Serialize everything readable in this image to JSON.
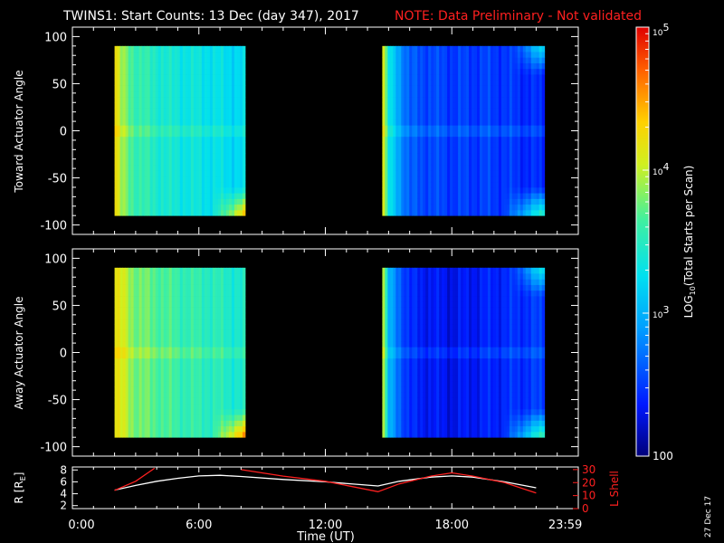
{
  "header": {
    "title": "TWINS1: Start Counts: 13 Dec (day 347), 2017",
    "note": "NOTE: Data Preliminary - Not validated"
  },
  "stamp": "27 Dec 17",
  "colors": {
    "note": "#ff2020",
    "lshell": "#ff2020",
    "r_line": "#ffffff",
    "background": "#000000"
  },
  "chart_data": [
    {
      "type": "heatmap",
      "panel": "toward",
      "ylabel": "Toward Actuator Angle",
      "ylim": [
        -110,
        110
      ],
      "yticks": [
        100,
        50,
        0,
        -50,
        -100
      ],
      "ytick_labels": [
        "100",
        "50",
        "0",
        "-50",
        "-100"
      ],
      "xlim": [
        0,
        24
      ],
      "data_blocks_hours": [
        [
          2.0,
          8.2
        ],
        [
          14.7,
          22.4
        ]
      ],
      "angle_range": [
        -90,
        90
      ],
      "level_profile": {
        "block1": [
          [
            2.0,
            4.3
          ],
          [
            2.3,
            3.9
          ],
          [
            3.0,
            3.6
          ],
          [
            4.5,
            3.4
          ],
          [
            6.5,
            3.3
          ],
          [
            8.2,
            3.2
          ]
        ],
        "block2": [
          [
            14.7,
            4.3
          ],
          [
            15.0,
            3.3
          ],
          [
            16.0,
            2.6
          ],
          [
            18.0,
            2.5
          ],
          [
            20.0,
            2.5
          ],
          [
            22.4,
            2.4
          ]
        ]
      }
    },
    {
      "type": "heatmap",
      "panel": "away",
      "ylabel": "Away Actuator Angle",
      "ylim": [
        -110,
        110
      ],
      "yticks": [
        100,
        50,
        0,
        -50,
        -100
      ],
      "ytick_labels": [
        "100",
        "50",
        "0",
        "-50",
        "-100"
      ],
      "xlim": [
        0,
        24
      ],
      "data_blocks_hours": [
        [
          2.0,
          8.2
        ],
        [
          14.7,
          22.4
        ]
      ],
      "angle_range": [
        -90,
        90
      ],
      "level_profile": {
        "block1": [
          [
            2.0,
            4.2
          ],
          [
            2.5,
            4.0
          ],
          [
            3.0,
            3.8
          ],
          [
            5.0,
            3.6
          ],
          [
            7.0,
            3.5
          ],
          [
            8.2,
            3.4
          ]
        ],
        "block2": [
          [
            14.7,
            4.2
          ],
          [
            15.0,
            3.0
          ],
          [
            16.0,
            2.4
          ],
          [
            18.0,
            2.3
          ],
          [
            20.0,
            2.4
          ],
          [
            22.4,
            2.5
          ]
        ]
      }
    },
    {
      "type": "line",
      "panel": "orbit",
      "ylabel_left": "R [R",
      "ylabel_left_sub": "E",
      "ylabel_left_close": "]",
      "ylabel_right": "L Shell",
      "ylim_left": [
        1.5,
        8.5
      ],
      "yticks_left": [
        8,
        6,
        4,
        2
      ],
      "ylim_right": [
        0,
        32
      ],
      "yticks_right": [
        30,
        20,
        10,
        0
      ],
      "xlabel": "Time (UT)",
      "xlim": [
        0,
        24
      ],
      "xticks": [
        0,
        6,
        12,
        18,
        23.983
      ],
      "xtick_labels": [
        "0:00",
        "6:00",
        "12:00",
        "18:00",
        "23:59"
      ],
      "series": [
        {
          "axis": "left",
          "x": [
            2.0,
            3.0,
            4.0,
            5.0,
            6.0,
            7.0,
            8.0,
            10.0,
            12.0,
            14.5,
            15.5,
            17.0,
            18.0,
            19.0,
            20.5,
            22.0
          ],
          "y": [
            4.6,
            5.4,
            6.1,
            6.6,
            7.0,
            7.1,
            6.9,
            6.4,
            6.0,
            5.3,
            6.1,
            6.8,
            7.0,
            6.8,
            6.0,
            5.0
          ]
        },
        {
          "axis": "right",
          "x": [
            2.0,
            3.0,
            3.9,
            null,
            8.0,
            10.0,
            12.0,
            14.5,
            15.5,
            17.0,
            18.0,
            19.0,
            20.5,
            22.0
          ],
          "y": [
            14.0,
            21.0,
            31.0,
            null,
            30.0,
            25.0,
            21.0,
            13.0,
            19.0,
            25.0,
            27.5,
            25.0,
            20.0,
            12.0
          ]
        }
      ]
    }
  ],
  "colorbar": {
    "label_main": "LOG",
    "label_sub": "10",
    "label_rest": "(Total Starts per Scan)",
    "range_log": [
      2,
      5
    ],
    "ticks": [
      {
        "log": 5,
        "base": "10",
        "exp": "5"
      },
      {
        "log": 4,
        "base": "10",
        "exp": "4"
      },
      {
        "log": 3,
        "base": "10",
        "exp": "3"
      },
      {
        "log": 2,
        "base": "100",
        "exp": ""
      }
    ]
  }
}
